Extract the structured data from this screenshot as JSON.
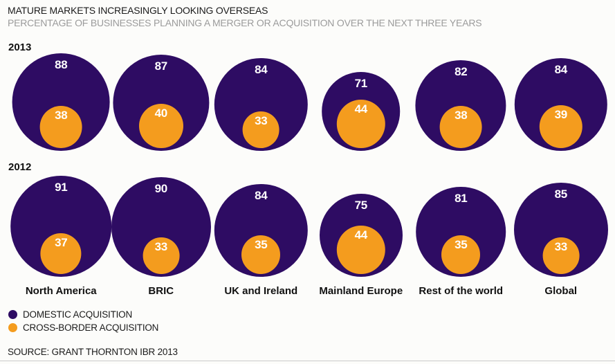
{
  "title": "MATURE MARKETS INCREASINGLY LOOKING OVERSEAS",
  "subtitle": "PERCENTAGE OF BUSINESSES PLANNING A MERGER OR ACQUISITION OVER THE NEXT THREE YEARS",
  "source": "SOURCE: GRANT THORNTON IBR 2013",
  "colors": {
    "domestic": "#2E0C63",
    "cross_border": "#F49C1E",
    "background": "#FCFCFA",
    "value_text": "#FFFFFF",
    "subtitle_text": "#9B9B9B"
  },
  "legend": [
    {
      "key": "domestic",
      "label": "DOMESTIC ACQUISITION"
    },
    {
      "key": "cross_border",
      "label": "CROSS-BORDER ACQUISITION"
    }
  ],
  "chart_data": {
    "type": "bubble",
    "subtype": "nested-proportional-circles",
    "unit": "%",
    "size_encoding": "circle diameter proportional to value",
    "legend_position": "bottom-left",
    "categories": [
      "North America",
      "BRIC",
      "UK and Ireland",
      "Mainland Europe",
      "Rest of the world",
      "Global"
    ],
    "groups": [
      {
        "year": "2013",
        "series": [
          {
            "name": "DOMESTIC ACQUISITION",
            "values": [
              88,
              87,
              84,
              71,
              82,
              84
            ]
          },
          {
            "name": "CROSS-BORDER ACQUISITION",
            "values": [
              38,
              40,
              33,
              44,
              38,
              39
            ]
          }
        ]
      },
      {
        "year": "2012",
        "series": [
          {
            "name": "DOMESTIC ACQUISITION",
            "values": [
              91,
              90,
              84,
              75,
              81,
              85
            ]
          },
          {
            "name": "CROSS-BORDER ACQUISITION",
            "values": [
              37,
              33,
              35,
              44,
              35,
              33
            ]
          }
        ]
      }
    ]
  }
}
